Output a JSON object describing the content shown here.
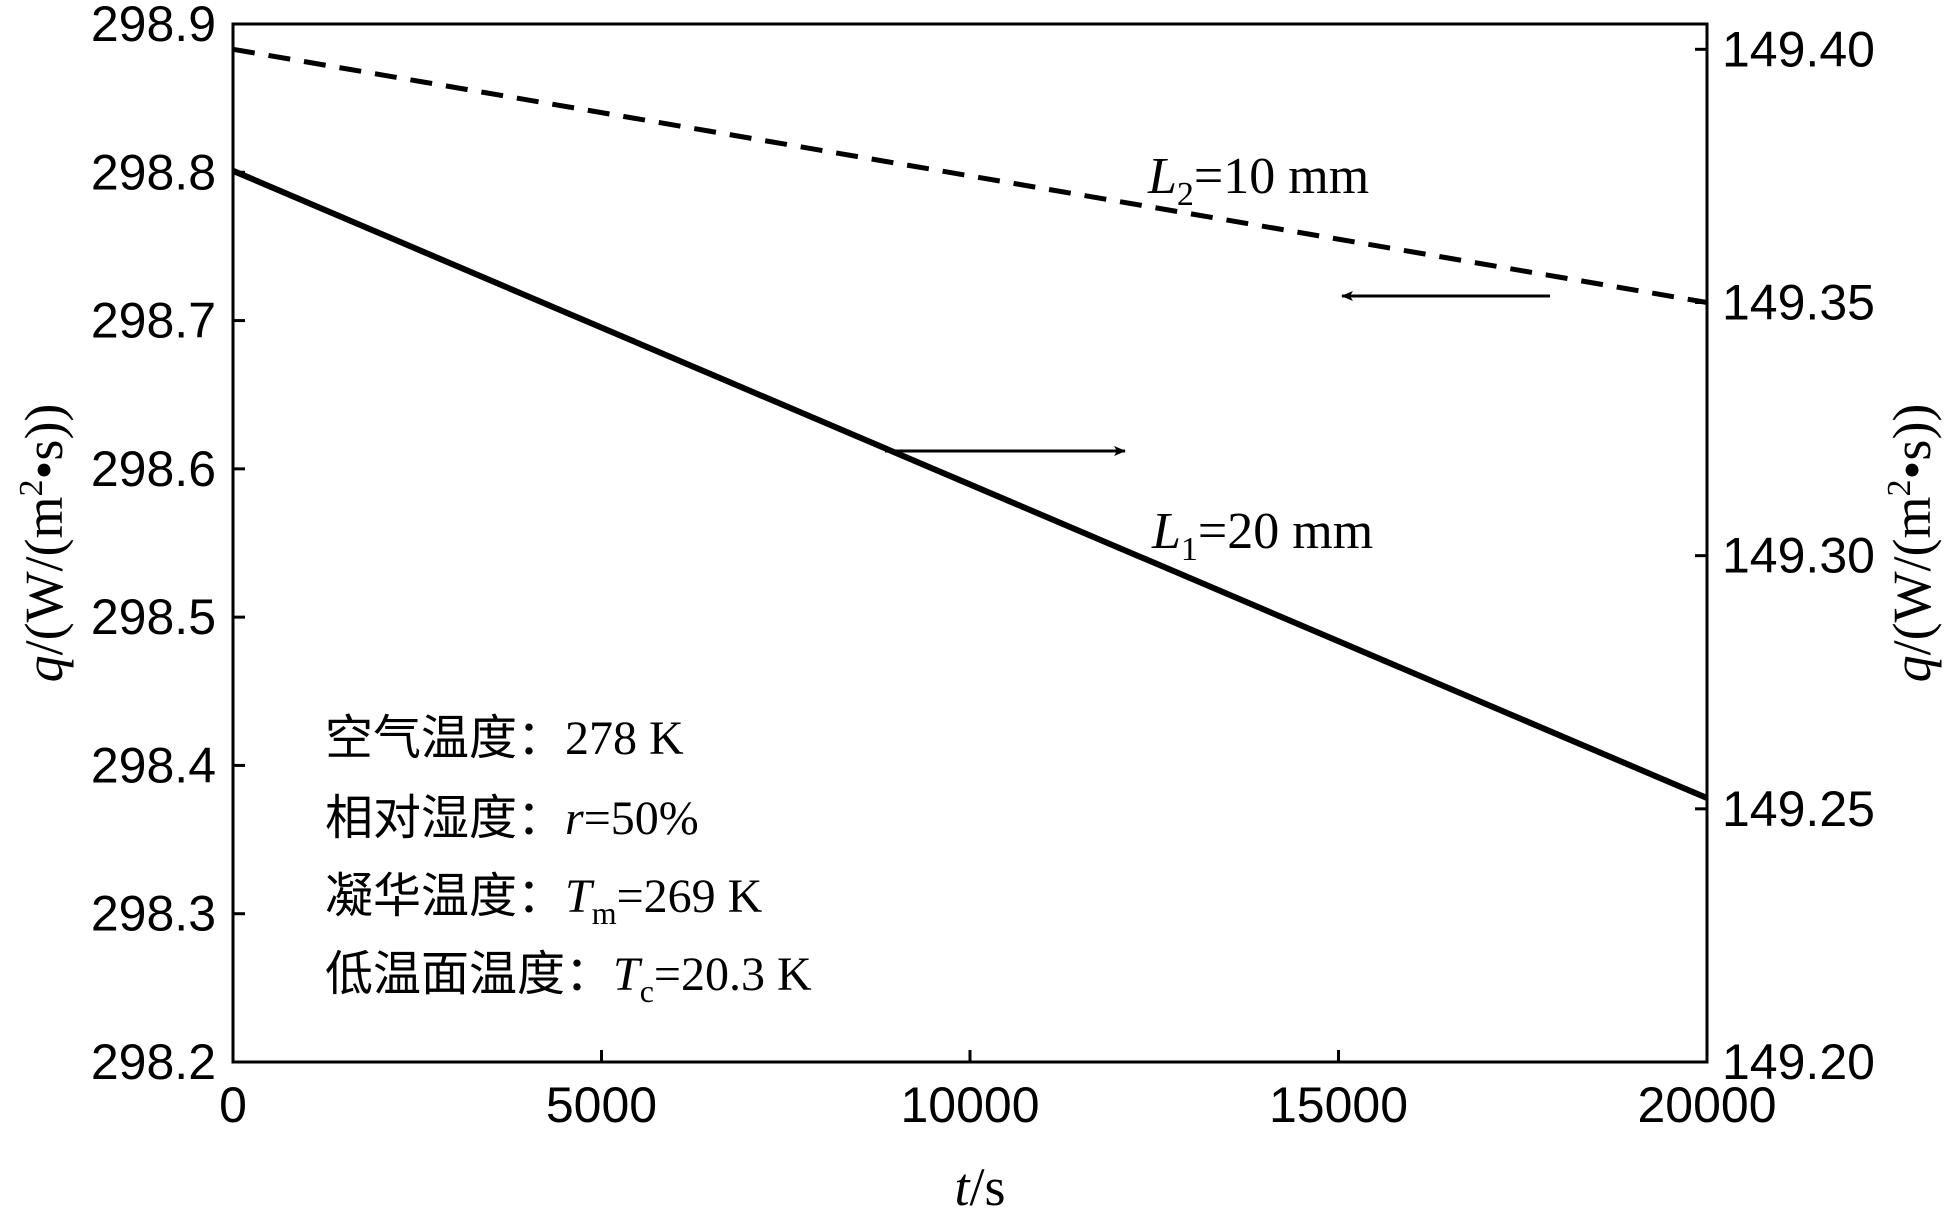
{
  "chart_data": {
    "type": "line",
    "x_axis": {
      "label_var": "t",
      "label_unit": "/s",
      "range": [
        0,
        20000
      ],
      "ticks": [
        0,
        5000,
        10000,
        15000,
        20000
      ],
      "tick_labels": [
        "0",
        "5000",
        "10000",
        "15000",
        "20000"
      ]
    },
    "y_left": {
      "label_var": "q",
      "label_unit_pre": "/(W/(m",
      "label_sup": "2",
      "label_unit_post": "•s))",
      "range": [
        298.2,
        298.9
      ],
      "ticks": [
        298.2,
        298.3,
        298.4,
        298.5,
        298.6,
        298.7,
        298.8,
        298.9
      ],
      "tick_labels": [
        "298.2",
        "298.3",
        "298.4",
        "298.5",
        "298.6",
        "298.7",
        "298.8",
        "298.9"
      ]
    },
    "y_right": {
      "label_var": "q",
      "label_unit_pre": "/(W/(m",
      "label_sup": "2",
      "label_unit_post": "•s))",
      "range": [
        149.2,
        149.405
      ],
      "ticks": [
        149.2,
        149.25,
        149.3,
        149.35,
        149.4
      ],
      "tick_labels": [
        "149.20",
        "149.25",
        "149.30",
        "149.35",
        "149.40"
      ]
    },
    "series": [
      {
        "name_main": "L",
        "name_sub": "1",
        "name_rest": "=20 mm",
        "axis": "left",
        "style": "solid",
        "x": [
          0,
          20000
        ],
        "y": [
          298.801,
          298.378
        ]
      },
      {
        "name_main": "L",
        "name_sub": "2",
        "name_rest": "=10 mm",
        "axis": "right",
        "style": "dashed",
        "x": [
          0,
          20000
        ],
        "y": [
          149.4,
          149.35
        ]
      }
    ],
    "annotations": [
      {
        "prefix": "空气温度：",
        "var": "",
        "sub": "",
        "rest": "278 K"
      },
      {
        "prefix": "相对湿度：",
        "var": "r",
        "sub": "",
        "rest": "=50%"
      },
      {
        "prefix": "凝华温度：",
        "var": "T",
        "sub": "m",
        "rest": "=269 K"
      },
      {
        "prefix": "低温面温度：",
        "var": "T",
        "sub": "c",
        "rest": "=20.3 K"
      }
    ],
    "grid": false,
    "colors": {
      "line": "#000000",
      "background": "#ffffff"
    }
  }
}
